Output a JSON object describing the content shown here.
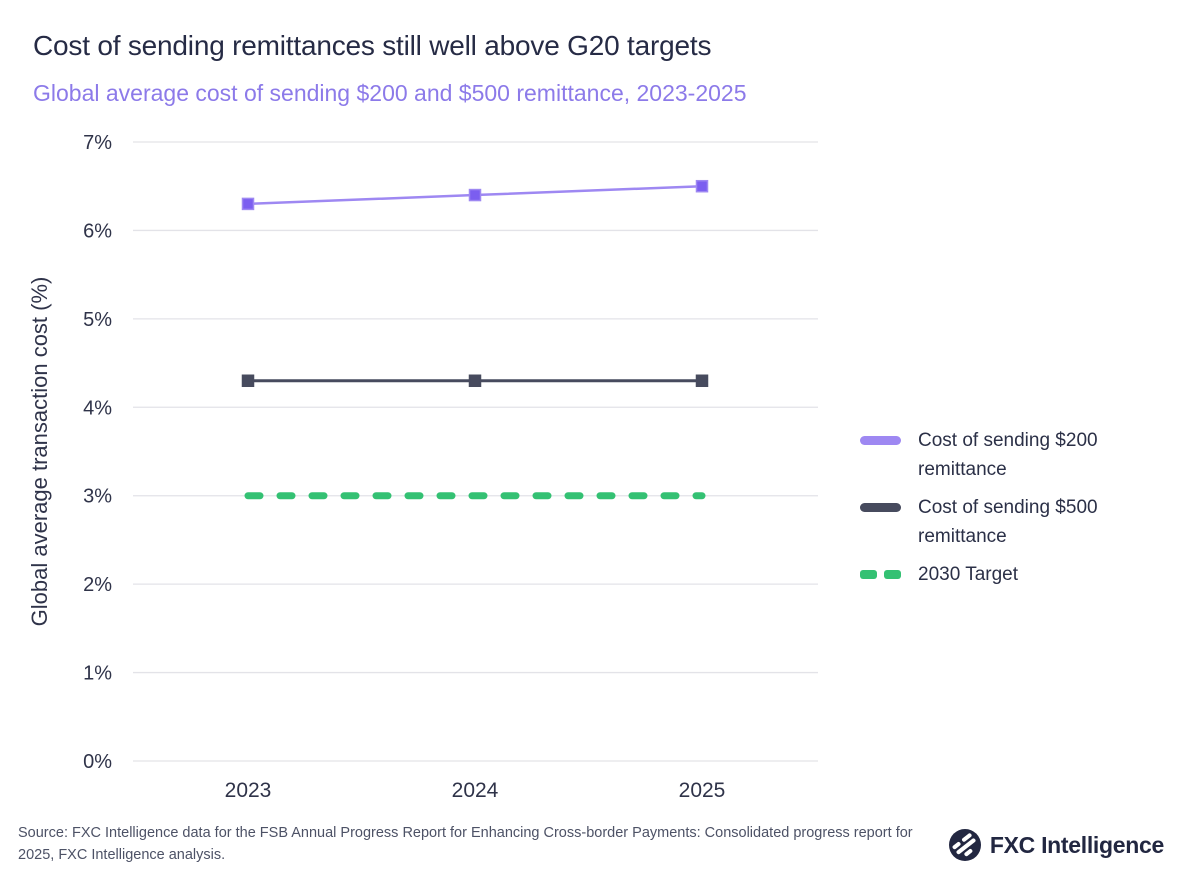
{
  "header": {
    "title": "Cost of sending remittances still well above G20 targets",
    "subtitle": "Global average cost of sending $200 and $500 remittance, 2023-2025"
  },
  "chart_data": {
    "type": "line",
    "categories": [
      "2023",
      "2024",
      "2025"
    ],
    "series": [
      {
        "name": "Cost of sending $200 remittance",
        "values": [
          6.3,
          6.4,
          6.5
        ],
        "color": "#9e88f2",
        "marker_fill": "#7b5ef0",
        "style": "solid",
        "marker": "square"
      },
      {
        "name": "Cost of sending $500 remittance",
        "values": [
          4.3,
          4.3,
          4.3
        ],
        "color": "#474b5e",
        "marker_fill": "#474b5e",
        "style": "solid",
        "marker": "square"
      },
      {
        "name": "2030 Target",
        "values": [
          3.0,
          3.0,
          3.0
        ],
        "color": "#34c173",
        "style": "dashed",
        "marker": "none"
      }
    ],
    "xlabel": "",
    "ylabel": "Global average transaction cost (%)",
    "ylim": [
      0,
      7
    ],
    "yticks": [
      "0%",
      "1%",
      "2%",
      "3%",
      "4%",
      "5%",
      "6%",
      "7%"
    ],
    "grid": "horizontal",
    "legend_position": "right"
  },
  "colors": {
    "grid_line": "#e3e3e8",
    "axis_text": "#2f3349",
    "title": "#262b45",
    "subtitle": "#8c7ae9",
    "source_text": "#4d5266",
    "logo_navy": "#222741"
  },
  "footer": {
    "source": "Source: FXC Intelligence data for the FSB Annual Progress Report for Enhancing Cross-border Payments: Consolidated progress report for 2025, FXC Intelligence analysis.",
    "logo_text": "FXC Intelligence",
    "logo_icon": "fxc-globe-icon"
  }
}
